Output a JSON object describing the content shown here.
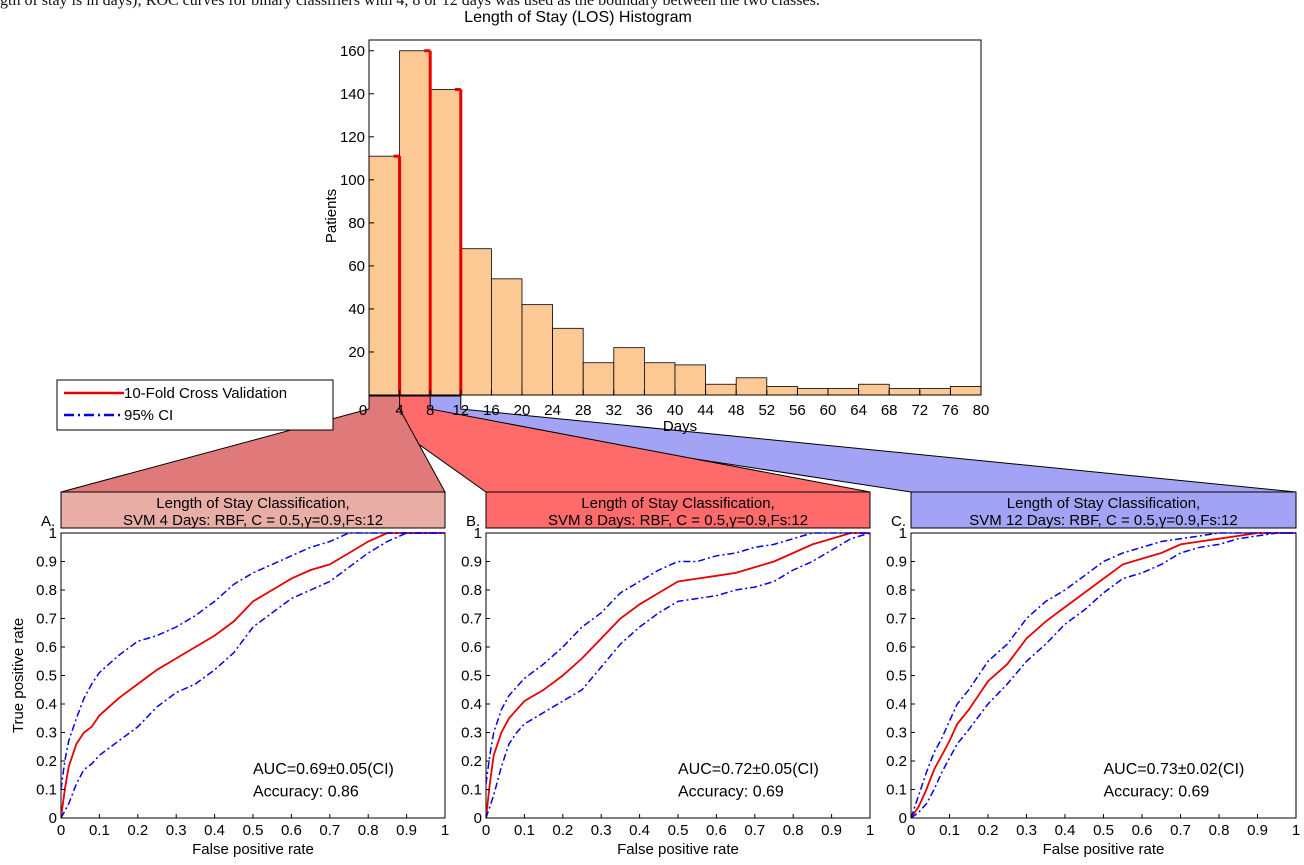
{
  "caption_fragment": "gth of stay is in days); ROC curves for binary classifiers with 4, 8 or 12 days was used as the boundary between the two classes.",
  "chart_data": [
    {
      "type": "bar",
      "title": "Length of Stay (LOS) Histogram",
      "xlabel": "Days",
      "ylabel": "Patients",
      "xlim": [
        0,
        80
      ],
      "ylim": [
        0,
        165
      ],
      "xticks": [
        "0",
        "4",
        "8",
        "12",
        "16",
        "20",
        "24",
        "28",
        "32",
        "36",
        "40",
        "44",
        "48",
        "52",
        "56",
        "60",
        "64",
        "68",
        "72",
        "76",
        "80"
      ],
      "yticks": [
        "20",
        "40",
        "60",
        "80",
        "100",
        "120",
        "140",
        "160"
      ],
      "bin_width": 4,
      "bin_starts": [
        0,
        4,
        8,
        12,
        16,
        20,
        24,
        28,
        32,
        36,
        40,
        44,
        48,
        52,
        56,
        60,
        64,
        68,
        72,
        76
      ],
      "values": [
        111,
        160,
        142,
        68,
        54,
        42,
        31,
        15,
        22,
        15,
        14,
        5,
        8,
        4,
        3,
        3,
        5,
        3,
        3,
        4
      ],
      "highlight_lines": [
        4,
        8,
        12
      ],
      "bar_color": "#fcc893",
      "highlight_color": "#e60000",
      "zoom_band_colors": [
        "#e07a7a",
        "#ff6b6b",
        "#a3a3f5"
      ]
    },
    {
      "type": "line",
      "panel_label": "A.",
      "title_line1": "Length of Stay Classification,",
      "title_line2": "SVM 4 Days: RBF, C = 0.5,γ=0.9,Fs:12",
      "title_bg": "#e8ada5",
      "xlabel": "False positive rate",
      "ylabel": "True positive rate",
      "xlim": [
        0,
        1
      ],
      "ylim": [
        0,
        1
      ],
      "xticks": [
        "0",
        "0.1",
        "0.2",
        "0.3",
        "0.4",
        "0.5",
        "0.6",
        "0.7",
        "0.8",
        "0.9",
        "1"
      ],
      "yticks": [
        "0",
        "0.1",
        "0.2",
        "0.3",
        "0.4",
        "0.5",
        "0.6",
        "0.7",
        "0.8",
        "0.9",
        "1"
      ],
      "auc_text": "AUC=0.69±0.05(CI)",
      "accuracy_text": "Accuracy: 0.86",
      "series": [
        {
          "name": "10-Fold Cross Validation",
          "color": "#e60000",
          "style": "solid",
          "x": [
            0,
            0.01,
            0.02,
            0.04,
            0.06,
            0.08,
            0.1,
            0.15,
            0.2,
            0.25,
            0.3,
            0.35,
            0.4,
            0.45,
            0.5,
            0.55,
            0.6,
            0.65,
            0.7,
            0.75,
            0.8,
            0.85,
            0.9,
            1
          ],
          "y": [
            0,
            0.1,
            0.18,
            0.26,
            0.3,
            0.32,
            0.36,
            0.42,
            0.47,
            0.52,
            0.56,
            0.6,
            0.64,
            0.69,
            0.76,
            0.8,
            0.84,
            0.87,
            0.89,
            0.93,
            0.97,
            1,
            1,
            1
          ]
        },
        {
          "name": "95% CI",
          "color": "#0000e6",
          "style": "dashdot",
          "x": [
            0,
            0.01,
            0.02,
            0.04,
            0.06,
            0.08,
            0.1,
            0.15,
            0.2,
            0.25,
            0.3,
            0.35,
            0.4,
            0.45,
            0.5,
            0.55,
            0.6,
            0.65,
            0.7,
            0.75,
            0.8,
            0.85,
            0.9,
            1
          ],
          "y": [
            0.1,
            0.2,
            0.27,
            0.35,
            0.42,
            0.47,
            0.51,
            0.57,
            0.62,
            0.64,
            0.67,
            0.71,
            0.76,
            0.82,
            0.86,
            0.89,
            0.92,
            0.95,
            0.97,
            1,
            1,
            1,
            1,
            1
          ]
        },
        {
          "color": "#0000e6",
          "style": "dashdot",
          "x": [
            0,
            0.02,
            0.04,
            0.06,
            0.08,
            0.1,
            0.15,
            0.2,
            0.25,
            0.3,
            0.35,
            0.4,
            0.45,
            0.5,
            0.55,
            0.6,
            0.65,
            0.7,
            0.75,
            0.8,
            0.85,
            0.9,
            0.95,
            1
          ],
          "y": [
            0,
            0.05,
            0.12,
            0.17,
            0.19,
            0.22,
            0.27,
            0.32,
            0.39,
            0.44,
            0.47,
            0.52,
            0.58,
            0.67,
            0.72,
            0.77,
            0.8,
            0.83,
            0.88,
            0.93,
            0.97,
            1,
            1,
            1
          ]
        }
      ]
    },
    {
      "type": "line",
      "panel_label": "B.",
      "title_line1": "Length of Stay Classification,",
      "title_line2": "SVM 8 Days: RBF, C = 0.5,γ=0.9,Fs:12",
      "title_bg": "#ff6b6b",
      "xlabel": "False positive rate",
      "ylabel": "",
      "xlim": [
        0,
        1
      ],
      "ylim": [
        0,
        1
      ],
      "xticks": [
        "0",
        "0.1",
        "0.2",
        "0.3",
        "0.4",
        "0.5",
        "0.6",
        "0.7",
        "0.8",
        "0.9",
        "1"
      ],
      "yticks": [
        "0",
        "0.1",
        "0.2",
        "0.3",
        "0.4",
        "0.5",
        "0.6",
        "0.7",
        "0.8",
        "0.9",
        "1"
      ],
      "auc_text": "AUC=0.72±0.05(CI)",
      "accuracy_text": "Accuracy: 0.69",
      "series": [
        {
          "color": "#e60000",
          "style": "solid",
          "x": [
            0,
            0.01,
            0.02,
            0.04,
            0.06,
            0.08,
            0.1,
            0.15,
            0.2,
            0.25,
            0.3,
            0.35,
            0.4,
            0.45,
            0.5,
            0.55,
            0.6,
            0.65,
            0.7,
            0.75,
            0.8,
            0.85,
            0.9,
            0.95,
            1
          ],
          "y": [
            0,
            0.12,
            0.22,
            0.3,
            0.35,
            0.38,
            0.41,
            0.45,
            0.5,
            0.56,
            0.63,
            0.7,
            0.75,
            0.79,
            0.83,
            0.84,
            0.85,
            0.86,
            0.88,
            0.9,
            0.93,
            0.96,
            0.98,
            1,
            1
          ]
        },
        {
          "color": "#0000e6",
          "style": "dashdot",
          "x": [
            0,
            0.01,
            0.02,
            0.04,
            0.06,
            0.08,
            0.1,
            0.15,
            0.2,
            0.25,
            0.3,
            0.35,
            0.4,
            0.45,
            0.5,
            0.55,
            0.6,
            0.65,
            0.7,
            0.75,
            0.8,
            0.85,
            0.9,
            0.95,
            1
          ],
          "y": [
            0.12,
            0.22,
            0.3,
            0.38,
            0.43,
            0.46,
            0.49,
            0.54,
            0.6,
            0.67,
            0.72,
            0.79,
            0.83,
            0.87,
            0.9,
            0.9,
            0.92,
            0.93,
            0.95,
            0.96,
            0.98,
            1,
            1,
            1,
            1
          ]
        },
        {
          "color": "#0000e6",
          "style": "dashdot",
          "x": [
            0,
            0.02,
            0.04,
            0.06,
            0.08,
            0.1,
            0.15,
            0.2,
            0.25,
            0.3,
            0.35,
            0.4,
            0.45,
            0.5,
            0.55,
            0.6,
            0.65,
            0.7,
            0.75,
            0.8,
            0.85,
            0.9,
            0.95,
            1
          ],
          "y": [
            0,
            0.08,
            0.18,
            0.26,
            0.3,
            0.33,
            0.37,
            0.41,
            0.45,
            0.53,
            0.61,
            0.67,
            0.72,
            0.76,
            0.77,
            0.78,
            0.8,
            0.81,
            0.83,
            0.87,
            0.9,
            0.94,
            0.98,
            1
          ]
        }
      ]
    },
    {
      "type": "line",
      "panel_label": "C.",
      "title_line1": "Length of Stay Classification,",
      "title_line2": "SVM 12 Days: RBF, C = 0.5,γ=0.9,Fs:12",
      "title_bg": "#a3a3f5",
      "xlabel": "False positive rate",
      "ylabel": "",
      "xlim": [
        0,
        1
      ],
      "ylim": [
        0,
        1
      ],
      "xticks": [
        "0",
        "0.1",
        "0.2",
        "0.3",
        "0.4",
        "0.5",
        "0.6",
        "0.7",
        "0.8",
        "0.9",
        "1"
      ],
      "yticks": [
        "0",
        "0.1",
        "0.2",
        "0.3",
        "0.4",
        "0.5",
        "0.6",
        "0.7",
        "0.8",
        "0.9",
        "1"
      ],
      "auc_text": "AUC=0.73±0.02(CI)",
      "accuracy_text": "Accuracy: 0.69",
      "series": [
        {
          "color": "#e60000",
          "style": "solid",
          "x": [
            0,
            0.02,
            0.04,
            0.06,
            0.08,
            0.1,
            0.12,
            0.15,
            0.2,
            0.25,
            0.3,
            0.35,
            0.4,
            0.45,
            0.5,
            0.55,
            0.6,
            0.65,
            0.7,
            0.75,
            0.8,
            0.85,
            0.9,
            0.95,
            1
          ],
          "y": [
            0,
            0.04,
            0.1,
            0.17,
            0.22,
            0.27,
            0.33,
            0.38,
            0.48,
            0.54,
            0.63,
            0.69,
            0.74,
            0.79,
            0.84,
            0.89,
            0.91,
            0.93,
            0.96,
            0.97,
            0.98,
            0.99,
            1,
            1,
            1
          ]
        },
        {
          "color": "#0000e6",
          "style": "dashdot",
          "x": [
            0,
            0.02,
            0.04,
            0.06,
            0.08,
            0.1,
            0.12,
            0.15,
            0.2,
            0.25,
            0.3,
            0.35,
            0.4,
            0.45,
            0.5,
            0.55,
            0.6,
            0.65,
            0.7,
            0.75,
            0.8,
            0.85,
            0.9,
            0.95,
            1
          ],
          "y": [
            0,
            0.08,
            0.16,
            0.23,
            0.28,
            0.34,
            0.4,
            0.45,
            0.55,
            0.61,
            0.7,
            0.76,
            0.8,
            0.85,
            0.9,
            0.93,
            0.95,
            0.97,
            0.98,
            0.99,
            1,
            1,
            1,
            1,
            1
          ]
        },
        {
          "color": "#0000e6",
          "style": "dashdot",
          "x": [
            0,
            0.02,
            0.04,
            0.06,
            0.08,
            0.1,
            0.12,
            0.15,
            0.2,
            0.25,
            0.3,
            0.35,
            0.4,
            0.45,
            0.5,
            0.55,
            0.6,
            0.65,
            0.7,
            0.75,
            0.8,
            0.85,
            0.9,
            0.95,
            1
          ],
          "y": [
            0,
            0.02,
            0.05,
            0.1,
            0.16,
            0.21,
            0.26,
            0.31,
            0.4,
            0.47,
            0.55,
            0.61,
            0.68,
            0.73,
            0.79,
            0.84,
            0.86,
            0.89,
            0.93,
            0.95,
            0.96,
            0.98,
            0.99,
            1,
            1
          ]
        }
      ]
    }
  ],
  "legend": {
    "entries": [
      {
        "label": "10-Fold Cross Validation",
        "color": "#e60000",
        "style": "solid"
      },
      {
        "label": "95% CI",
        "color": "#0000e6",
        "style": "dashdot"
      }
    ]
  }
}
